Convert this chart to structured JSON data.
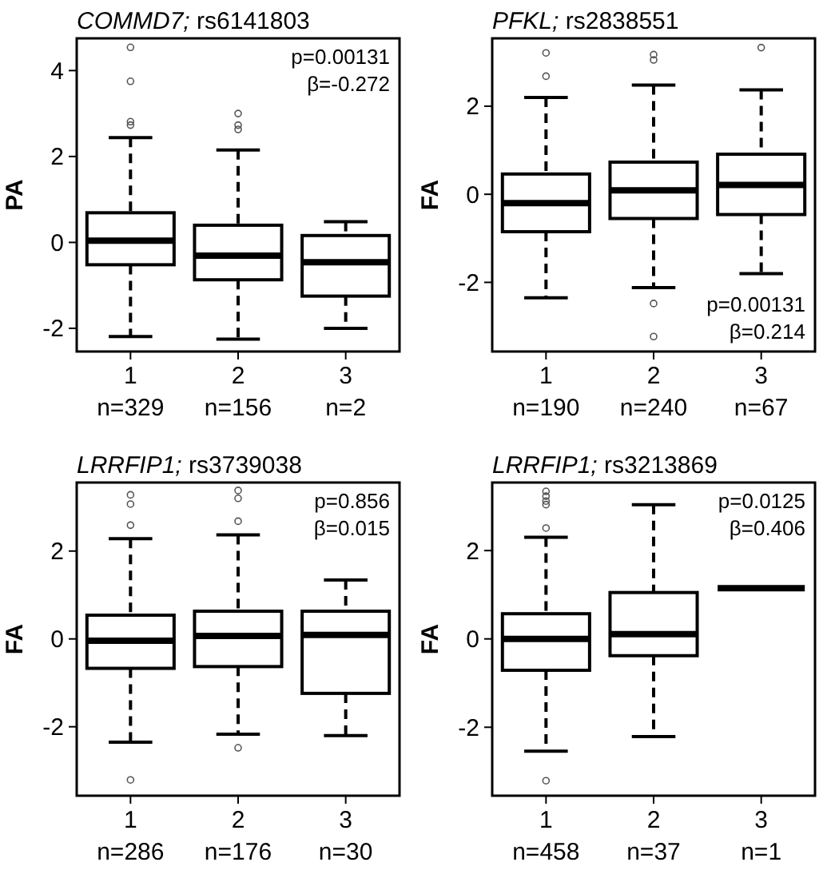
{
  "chart_data": [
    {
      "type": "box",
      "title": "COMMD7; rs6141803",
      "ylabel": "PA",
      "categories": [
        "1\nn=329",
        "2\nn=156",
        "3\nn=2"
      ],
      "ylim": [
        -2.54,
        4.75
      ],
      "yticks": [
        -2,
        0,
        2,
        4
      ],
      "grid": false,
      "boxes": [
        {
          "low": -2.19,
          "q1": -0.52,
          "median": 0.04,
          "q3": 0.69,
          "high": 2.44,
          "outliers": [
            4.54,
            3.75,
            2.81,
            2.73
          ]
        },
        {
          "low": -2.25,
          "q1": -0.87,
          "median": -0.31,
          "q3": 0.4,
          "high": 2.15,
          "outliers": [
            3.0,
            2.73,
            2.63
          ]
        },
        {
          "low": -2.0,
          "q1": -1.25,
          "median": -0.46,
          "q3": 0.16,
          "high": 0.48
        }
      ],
      "annotations": [
        "p=0.00131",
        "β=-0.272"
      ]
    },
    {
      "type": "box",
      "title": "PFKL; rs2838551",
      "ylabel": "FA",
      "categories": [
        "1\nn=190",
        "2\nn=240",
        "3\nn=67"
      ],
      "ylim": [
        -3.57,
        3.54
      ],
      "yticks": [
        -2,
        0,
        2
      ],
      "grid": false,
      "boxes": [
        {
          "low": -2.35,
          "q1": -0.85,
          "median": -0.2,
          "q3": 0.46,
          "high": 2.2,
          "outliers": [
            3.21,
            2.68
          ]
        },
        {
          "low": -2.12,
          "q1": -0.55,
          "median": 0.09,
          "q3": 0.73,
          "high": 2.48,
          "outliers": [
            3.17,
            3.05,
            -2.48,
            -3.23
          ]
        },
        {
          "low": -1.8,
          "q1": -0.46,
          "median": 0.21,
          "q3": 0.91,
          "high": 2.37,
          "outliers": [
            3.33
          ]
        }
      ],
      "annotations": [
        "p=0.00131",
        "β=0.214"
      ]
    },
    {
      "type": "box",
      "title": "LRRFIP1; rs3739038",
      "ylabel": "FA",
      "categories": [
        "1\nn=286",
        "2\nn=176",
        "3\nn=30"
      ],
      "ylim": [
        -3.57,
        3.56
      ],
      "yticks": [
        -2,
        0,
        2
      ],
      "grid": false,
      "boxes": [
        {
          "low": -2.35,
          "q1": -0.67,
          "median": -0.04,
          "q3": 0.54,
          "high": 2.28,
          "outliers": [
            3.28,
            3.07,
            2.59,
            -3.21
          ]
        },
        {
          "low": -2.17,
          "q1": -0.63,
          "median": 0.07,
          "q3": 0.63,
          "high": 2.37,
          "outliers": [
            3.38,
            3.2,
            2.68,
            -2.48
          ]
        },
        {
          "low": -2.2,
          "q1": -1.24,
          "median": 0.09,
          "q3": 0.63,
          "high": 1.34
        }
      ],
      "annotations": [
        "p=0.856",
        "β=0.015"
      ]
    },
    {
      "type": "box",
      "title": "LRRFIP1; rs3213869",
      "ylabel": "FA",
      "categories": [
        "1\nn=458",
        "2\nn=37",
        "3\nn=1"
      ],
      "ylim": [
        -3.55,
        3.54
      ],
      "yticks": [
        -2,
        0,
        2
      ],
      "grid": false,
      "boxes": [
        {
          "low": -2.54,
          "q1": -0.71,
          "median": 0.0,
          "q3": 0.57,
          "high": 2.3,
          "outliers": [
            3.34,
            3.23,
            3.12,
            3.04,
            2.51,
            -3.21
          ]
        },
        {
          "low": -2.21,
          "q1": -0.38,
          "median": 0.11,
          "q3": 1.05,
          "high": 3.04
        },
        {
          "low": 1.15,
          "q1": 1.15,
          "median": 1.15,
          "q3": 1.15,
          "high": 1.15
        }
      ],
      "annotations": [
        "p=0.0125",
        "β=0.406"
      ]
    }
  ]
}
